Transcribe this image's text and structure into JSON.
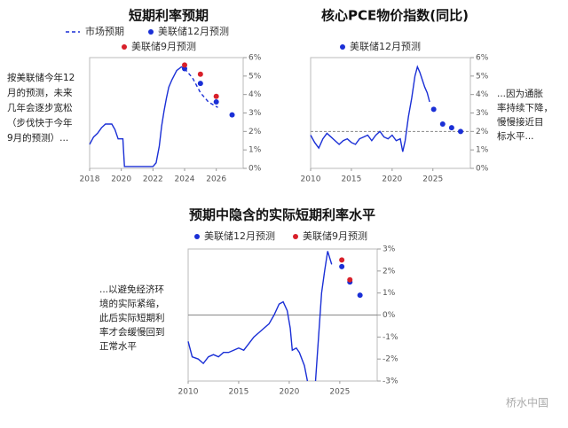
{
  "chart_data": [
    {
      "type": "line",
      "title": "短期利率预期",
      "annotation": [
        "按美联储今年12",
        "月的预测，未来",
        "几年会逐步宽松",
        "（步伐快于今年",
        "9月的预测）..."
      ],
      "xlim": [
        2018,
        2027.7
      ],
      "xticks": [
        2018,
        2020,
        2022,
        2024,
        2026
      ],
      "ylim": [
        0,
        6
      ],
      "yticks": [
        {
          "value": 0,
          "label": "0%"
        },
        {
          "value": 1,
          "label": "1%"
        },
        {
          "value": 2,
          "label": "2%"
        },
        {
          "value": 3,
          "label": "3%"
        },
        {
          "value": 4,
          "label": "4%"
        },
        {
          "value": 5,
          "label": "5%"
        },
        {
          "value": 6,
          "label": "6%"
        }
      ],
      "series": [
        {
          "color": "#1a2fd6",
          "style": "line",
          "x": [
            2018,
            2018.25,
            2018.5,
            2018.75,
            2019.0,
            2019.4,
            2019.6,
            2019.8,
            2020.1,
            2020.2,
            2021,
            2022,
            2022.2,
            2022.4,
            2022.55,
            2022.7,
            2022.85,
            2023.0,
            2023.2,
            2023.5,
            2023.8,
            2024.0
          ],
          "values": [
            1.3,
            1.7,
            1.9,
            2.2,
            2.4,
            2.4,
            2.1,
            1.6,
            1.6,
            0.1,
            0.1,
            0.1,
            0.3,
            1.2,
            2.3,
            3.1,
            3.8,
            4.4,
            4.8,
            5.3,
            5.5,
            5.4
          ]
        },
        {
          "name": "市场预期",
          "color": "#1a2fd6",
          "style": "dashed",
          "x": [
            2024.0,
            2024.5,
            2025.0,
            2025.5,
            2026.1
          ],
          "values": [
            5.4,
            4.9,
            4.1,
            3.6,
            3.3
          ]
        },
        {
          "name": "美联储12月预测",
          "color": "#1a2fd6",
          "style": "markers",
          "x": [
            2024,
            2025,
            2026,
            2027
          ],
          "values": [
            5.4,
            4.6,
            3.6,
            2.9
          ]
        },
        {
          "name": "美联储9月预测",
          "color": "#d8202a",
          "style": "markers",
          "x": [
            2024,
            2025,
            2026
          ],
          "values": [
            5.6,
            5.1,
            3.9
          ]
        }
      ]
    },
    {
      "type": "line",
      "title": "核心PCE物价指数(同比)",
      "annotation": [
        "...因为通胀",
        "率持续下降，",
        "慢慢接近目",
        "标水平..."
      ],
      "xlim": [
        2010,
        2029.6
      ],
      "xticks": [
        2010,
        2015,
        2020,
        2025
      ],
      "ylim": [
        0,
        6
      ],
      "yticks": [
        {
          "value": 0,
          "label": "0%"
        },
        {
          "value": 1,
          "label": "1%"
        },
        {
          "value": 2,
          "label": "2%"
        },
        {
          "value": 3,
          "label": "3%"
        },
        {
          "value": 4,
          "label": "4%"
        },
        {
          "value": 5,
          "label": "5%"
        },
        {
          "value": 6,
          "label": "6%"
        }
      ],
      "hline": 2,
      "series": [
        {
          "color": "#1a2fd6",
          "style": "line",
          "x": [
            2010,
            2010.5,
            2011,
            2011.5,
            2012,
            2012.5,
            2013,
            2013.5,
            2014,
            2014.5,
            2015,
            2015.5,
            2016,
            2016.5,
            2017,
            2017.5,
            2018,
            2018.5,
            2019,
            2019.5,
            2020,
            2020.5,
            2021,
            2021.3,
            2021.6,
            2022,
            2022.4,
            2022.8,
            2023.1,
            2023.4,
            2023.7,
            2024.0,
            2024.3,
            2024.6
          ],
          "values": [
            1.8,
            1.4,
            1.1,
            1.6,
            1.9,
            1.7,
            1.5,
            1.3,
            1.5,
            1.6,
            1.4,
            1.3,
            1.6,
            1.7,
            1.8,
            1.5,
            1.8,
            2.0,
            1.7,
            1.6,
            1.8,
            1.5,
            1.6,
            0.9,
            1.5,
            2.8,
            3.8,
            5.0,
            5.5,
            5.2,
            4.8,
            4.4,
            4.1,
            3.6
          ]
        },
        {
          "name": "美联储12月预测",
          "color": "#1a2fd6",
          "style": "markers",
          "x": [
            2025.1,
            2026.2,
            2027.3,
            2028.4
          ],
          "values": [
            3.2,
            2.4,
            2.2,
            2.0
          ]
        }
      ]
    },
    {
      "type": "line",
      "title": "预期中隐含的实际短期利率水平",
      "annotation": [
        "...以避免经济环",
        "境的实际紧缩，",
        "此后实际短期利",
        "率才会缓慢回到",
        "正常水平"
      ],
      "xlim": [
        2010,
        2028.7
      ],
      "xticks": [
        2010,
        2015,
        2020,
        2025
      ],
      "ylim": [
        -3,
        3
      ],
      "yticks": [
        {
          "value": -3,
          "label": "-3%"
        },
        {
          "value": -2,
          "label": "-2%"
        },
        {
          "value": -1,
          "label": "-1%"
        },
        {
          "value": 0,
          "label": "0%"
        },
        {
          "value": 1,
          "label": "1%"
        },
        {
          "value": 2,
          "label": "2%"
        },
        {
          "value": 3,
          "label": "3%"
        }
      ],
      "hline": 0,
      "series": [
        {
          "color": "#1a2fd6",
          "style": "line",
          "x": [
            2010,
            2010.4,
            2011,
            2011.5,
            2012,
            2012.5,
            2013,
            2013.5,
            2014,
            2014.5,
            2015,
            2015.5,
            2016,
            2016.5,
            2017,
            2017.5,
            2018,
            2018.5,
            2019,
            2019.4,
            2019.8,
            2020.1,
            2020.3,
            2020.7,
            2021,
            2021.5,
            2021.8,
            2022,
            2022.6,
            2022.9,
            2023.2,
            2023.5,
            2023.8,
            2024.0,
            2024.2
          ],
          "values": [
            -1.2,
            -1.9,
            -2.0,
            -2.2,
            -1.9,
            -1.8,
            -1.9,
            -1.7,
            -1.7,
            -1.6,
            -1.5,
            -1.6,
            -1.3,
            -1.0,
            -0.8,
            -0.6,
            -0.4,
            0.0,
            0.5,
            0.6,
            0.2,
            -0.6,
            -1.6,
            -1.5,
            -1.7,
            -2.3,
            -3.0,
            null,
            -3.0,
            -1.0,
            1.0,
            2.0,
            2.9,
            2.6,
            2.3
          ]
        },
        {
          "name": "美联储12月预测",
          "color": "#1a2fd6",
          "style": "markers",
          "x": [
            2025.2,
            2026.0,
            2027.0
          ],
          "values": [
            2.2,
            1.5,
            0.9
          ]
        },
        {
          "name": "美联储9月预测",
          "color": "#d8202a",
          "style": "markers",
          "x": [
            2025.2,
            2026.0
          ],
          "values": [
            2.5,
            1.6
          ]
        }
      ]
    }
  ],
  "watermark": "桥水中国"
}
